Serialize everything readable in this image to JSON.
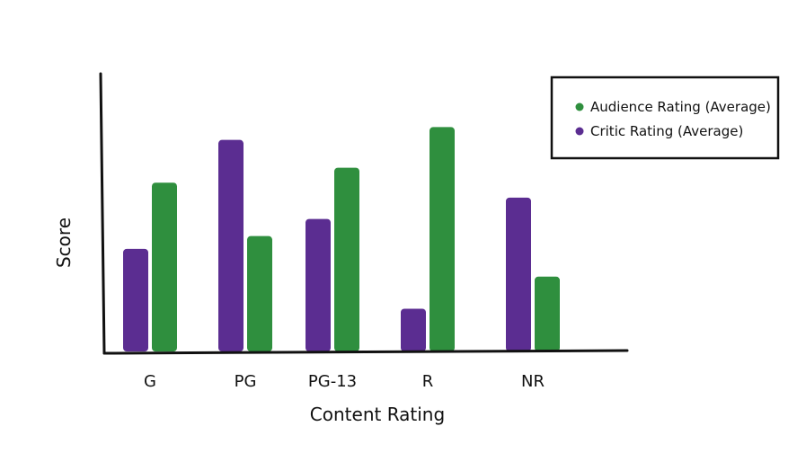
{
  "chart_data": {
    "type": "bar",
    "xlabel": "Content Rating",
    "ylabel": "Score",
    "categories": [
      "G",
      "PG",
      "PG-13",
      "R",
      "NR"
    ],
    "series": [
      {
        "name": "Critic Rating (Average)",
        "color": "#5b2d91",
        "values": [
          48,
          99,
          62,
          20,
          72
        ]
      },
      {
        "name": "Audience Rating (Average)",
        "color": "#2f8f3e",
        "values": [
          79,
          54,
          86,
          105,
          35
        ]
      }
    ],
    "ylim": [
      0,
      130
    ],
    "grid": false,
    "legend_position": "top-right"
  }
}
